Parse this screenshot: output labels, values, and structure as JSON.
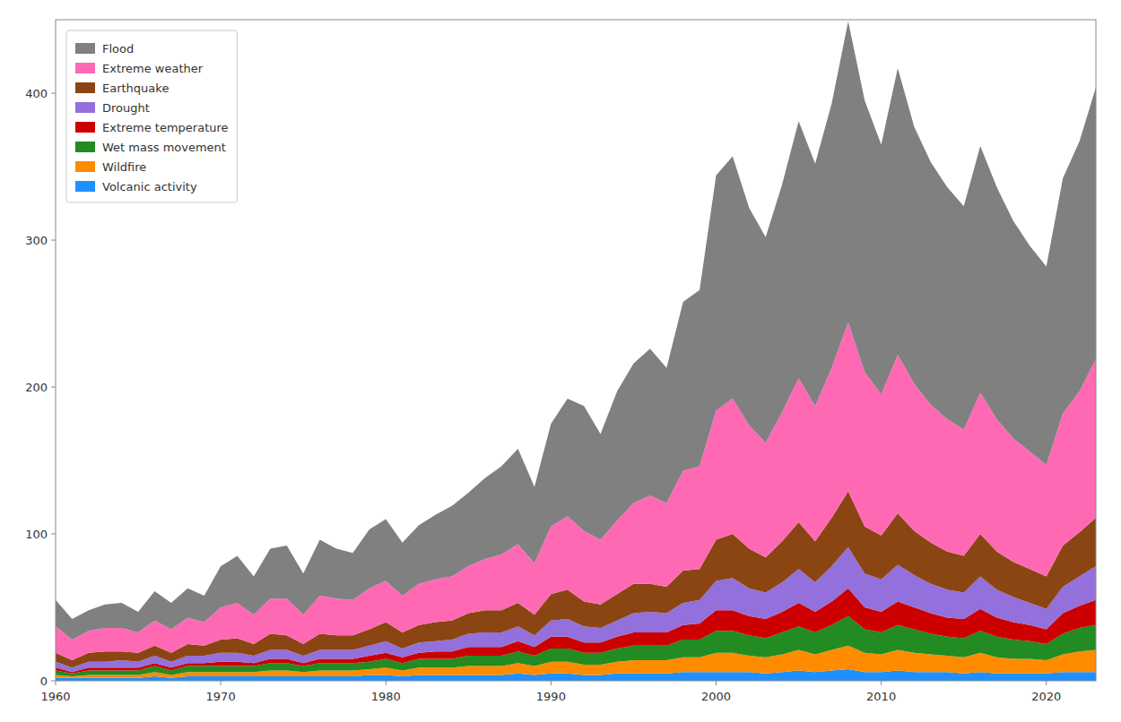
{
  "chart_data": {
    "type": "area",
    "stacked": true,
    "x": [
      1960,
      1961,
      1962,
      1963,
      1964,
      1965,
      1966,
      1967,
      1968,
      1969,
      1970,
      1971,
      1972,
      1973,
      1974,
      1975,
      1976,
      1977,
      1978,
      1979,
      1980,
      1981,
      1982,
      1983,
      1984,
      1985,
      1986,
      1987,
      1988,
      1989,
      1990,
      1991,
      1992,
      1993,
      1994,
      1995,
      1996,
      1997,
      1998,
      1999,
      2000,
      2001,
      2002,
      2003,
      2004,
      2005,
      2006,
      2007,
      2008,
      2009,
      2010,
      2011,
      2012,
      2013,
      2014,
      2015,
      2016,
      2017,
      2018,
      2019,
      2020,
      2021,
      2022,
      2023
    ],
    "series": [
      {
        "name": "Volcanic activity",
        "color": "#1E90FF",
        "values": [
          2,
          2,
          2,
          2,
          2,
          2,
          3,
          2,
          3,
          3,
          3,
          3,
          3,
          3,
          3,
          3,
          3,
          3,
          3,
          4,
          4,
          3,
          4,
          4,
          4,
          4,
          4,
          4,
          5,
          4,
          5,
          5,
          4,
          4,
          5,
          5,
          5,
          5,
          6,
          6,
          6,
          6,
          6,
          5,
          6,
          7,
          6,
          7,
          8,
          6,
          6,
          7,
          6,
          6,
          6,
          5,
          6,
          5,
          5,
          5,
          5,
          6,
          6,
          6
        ]
      },
      {
        "name": "Wildfire",
        "color": "#FF8C00",
        "values": [
          2,
          1,
          2,
          2,
          2,
          2,
          3,
          2,
          3,
          3,
          3,
          3,
          3,
          4,
          4,
          3,
          4,
          4,
          4,
          4,
          5,
          4,
          5,
          5,
          5,
          6,
          6,
          6,
          7,
          6,
          8,
          8,
          7,
          7,
          8,
          9,
          9,
          9,
          10,
          10,
          13,
          13,
          11,
          11,
          12,
          14,
          12,
          14,
          16,
          13,
          12,
          14,
          13,
          12,
          11,
          11,
          13,
          11,
          10,
          10,
          9,
          12,
          14,
          15
        ]
      },
      {
        "name": "Wet mass movement",
        "color": "#228B22",
        "values": [
          3,
          2,
          3,
          3,
          3,
          3,
          4,
          3,
          4,
          4,
          4,
          4,
          4,
          5,
          5,
          4,
          5,
          5,
          5,
          5,
          6,
          5,
          6,
          6,
          6,
          7,
          7,
          7,
          8,
          7,
          9,
          9,
          8,
          8,
          9,
          10,
          10,
          10,
          12,
          12,
          15,
          15,
          14,
          13,
          15,
          16,
          15,
          17,
          20,
          16,
          15,
          17,
          16,
          14,
          13,
          13,
          15,
          14,
          13,
          12,
          11,
          14,
          16,
          17
        ]
      },
      {
        "name": "Extreme temperature",
        "color": "#CC0000",
        "values": [
          2,
          1,
          2,
          2,
          2,
          2,
          2,
          2,
          2,
          2,
          3,
          3,
          2,
          3,
          3,
          2,
          3,
          3,
          3,
          4,
          4,
          4,
          4,
          5,
          5,
          6,
          6,
          6,
          7,
          6,
          8,
          8,
          7,
          7,
          8,
          9,
          9,
          9,
          10,
          11,
          14,
          14,
          13,
          13,
          14,
          16,
          14,
          16,
          19,
          15,
          14,
          16,
          15,
          14,
          13,
          13,
          15,
          13,
          12,
          11,
          10,
          14,
          15,
          17
        ]
      },
      {
        "name": "Drought",
        "color": "#9370DB",
        "values": [
          4,
          3,
          4,
          4,
          5,
          4,
          5,
          4,
          5,
          5,
          6,
          6,
          5,
          6,
          6,
          5,
          6,
          6,
          6,
          7,
          8,
          6,
          7,
          7,
          8,
          9,
          10,
          10,
          10,
          8,
          11,
          12,
          11,
          10,
          11,
          13,
          14,
          13,
          15,
          16,
          20,
          22,
          19,
          18,
          20,
          23,
          20,
          24,
          28,
          23,
          22,
          25,
          22,
          20,
          19,
          18,
          22,
          19,
          17,
          15,
          14,
          18,
          20,
          23
        ]
      },
      {
        "name": "Earthquake",
        "color": "#8B4513",
        "values": [
          6,
          5,
          6,
          7,
          6,
          6,
          7,
          6,
          8,
          7,
          9,
          10,
          8,
          11,
          10,
          8,
          11,
          10,
          10,
          11,
          13,
          11,
          12,
          13,
          13,
          14,
          15,
          15,
          16,
          14,
          18,
          20,
          17,
          16,
          18,
          20,
          19,
          18,
          22,
          21,
          28,
          30,
          27,
          24,
          28,
          32,
          28,
          33,
          38,
          32,
          30,
          35,
          30,
          28,
          26,
          25,
          29,
          26,
          24,
          23,
          22,
          28,
          30,
          33
        ]
      },
      {
        "name": "Extreme weather",
        "color": "#FF69B4",
        "values": [
          18,
          14,
          15,
          16,
          16,
          14,
          17,
          16,
          18,
          16,
          22,
          24,
          20,
          24,
          25,
          20,
          26,
          25,
          24,
          28,
          28,
          25,
          28,
          29,
          30,
          32,
          35,
          38,
          40,
          35,
          46,
          50,
          48,
          44,
          50,
          55,
          60,
          57,
          68,
          70,
          88,
          92,
          84,
          78,
          88,
          98,
          92,
          102,
          115,
          105,
          96,
          108,
          100,
          94,
          90,
          86,
          96,
          90,
          84,
          80,
          76,
          90,
          96,
          108
        ]
      },
      {
        "name": "Flood",
        "color": "#808080",
        "values": [
          18,
          14,
          14,
          16,
          17,
          14,
          20,
          18,
          20,
          18,
          28,
          32,
          26,
          34,
          36,
          28,
          38,
          34,
          32,
          40,
          42,
          36,
          40,
          44,
          48,
          50,
          55,
          60,
          65,
          52,
          70,
          80,
          85,
          72,
          88,
          95,
          100,
          92,
          115,
          120,
          160,
          165,
          148,
          140,
          155,
          175,
          165,
          180,
          205,
          185,
          170,
          195,
          175,
          165,
          158,
          152,
          168,
          158,
          148,
          140,
          135,
          160,
          170,
          185
        ]
      }
    ],
    "xlim": [
      1960,
      2023
    ],
    "ylim": [
      0,
      450
    ],
    "xticks": [
      1960,
      1970,
      1980,
      1990,
      2000,
      2010,
      2020
    ],
    "yticks": [
      0,
      100,
      200,
      300,
      400
    ],
    "legend": "upper left",
    "grid": false
  }
}
